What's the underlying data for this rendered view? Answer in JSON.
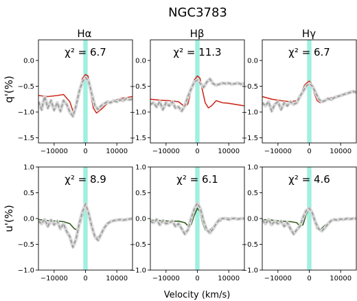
{
  "figure": {
    "title": "NGC3783",
    "xlabel": "Velocity (km/s)",
    "row_ylabels": [
      "q'(%)",
      "u'(%)"
    ],
    "column_titles": [
      "Hα",
      "Hβ",
      "Hγ"
    ]
  },
  "colors": {
    "model_q": "#cc2b1d",
    "model_u": "#2f5a1a",
    "observed": "#9a9a9a",
    "observed_err": "#d8d8d8",
    "band": "#9ff0df"
  },
  "chart_data": [
    {
      "type": "line",
      "row": 0,
      "col": 0,
      "annotation": "χ² = 6.7",
      "xlim": [
        -15000,
        15000
      ],
      "ylim": [
        -1.6,
        0.4
      ],
      "xticks": [
        -10000,
        0,
        10000
      ],
      "yticks": [
        -1.5,
        -1.0,
        -0.5,
        0.0
      ],
      "band": [
        -700,
        700
      ],
      "series": [
        {
          "role": "model",
          "style": "solid",
          "x": [
            -15000,
            -12000,
            -9000,
            -7000,
            -5000,
            -4000,
            -3000,
            -2000,
            -1000,
            0,
            800,
            1500,
            2500,
            3500,
            5000,
            7000,
            9000,
            11000,
            13000,
            15000
          ],
          "y": [
            -0.68,
            -0.7,
            -0.68,
            -0.66,
            -0.8,
            -0.98,
            -0.92,
            -0.6,
            -0.35,
            -0.27,
            -0.3,
            -0.6,
            -0.92,
            -1.02,
            -0.95,
            -0.83,
            -0.78,
            -0.74,
            -0.72,
            -0.7
          ]
        },
        {
          "role": "observed",
          "style": "dashed",
          "x": [
            -15000,
            -14000,
            -13000,
            -12000,
            -11000,
            -10000,
            -9000,
            -8000,
            -7000,
            -6000,
            -5000,
            -4000,
            -3000,
            -2000,
            -1000,
            0,
            1000,
            2000,
            3000,
            4000,
            5000,
            6000,
            7000,
            8000,
            9000,
            10000,
            11000,
            12000,
            13000,
            14000,
            15000
          ],
          "y": [
            -0.8,
            -0.95,
            -0.7,
            -0.92,
            -0.78,
            -0.96,
            -0.82,
            -0.98,
            -0.78,
            -0.85,
            -1.0,
            -1.08,
            -0.88,
            -0.6,
            -0.42,
            -0.33,
            -0.4,
            -0.65,
            -0.88,
            -0.95,
            -0.88,
            -0.84,
            -0.8,
            -0.82,
            -0.78,
            -0.8,
            -0.76,
            -0.78,
            -0.74,
            -0.76,
            -0.75
          ]
        }
      ]
    },
    {
      "type": "line",
      "row": 0,
      "col": 1,
      "annotation": "χ² = 11.3",
      "xlim": [
        -15000,
        15000
      ],
      "ylim": [
        -1.6,
        0.4
      ],
      "xticks": [
        -10000,
        0,
        10000
      ],
      "yticks": [
        -1.5,
        -1.0,
        -0.5,
        0.0
      ],
      "band": [
        -700,
        700
      ],
      "series": [
        {
          "role": "model",
          "style": "solid",
          "x": [
            -15000,
            -12000,
            -9000,
            -6000,
            -4000,
            -3000,
            -2000,
            -1000,
            0,
            800,
            1500,
            2500,
            3500,
            4500,
            6000,
            8000,
            10000,
            12000,
            14000,
            15000
          ],
          "y": [
            -0.75,
            -0.77,
            -0.78,
            -0.8,
            -0.9,
            -0.84,
            -0.58,
            -0.38,
            -0.3,
            -0.34,
            -0.55,
            -0.82,
            -0.92,
            -0.88,
            -0.78,
            -0.82,
            -0.83,
            -0.85,
            -0.87,
            -0.88
          ]
        },
        {
          "role": "observed",
          "style": "dashed",
          "x": [
            -15000,
            -14000,
            -13000,
            -12000,
            -11000,
            -10000,
            -9000,
            -8000,
            -7000,
            -6000,
            -5000,
            -4000,
            -3000,
            -2000,
            -1000,
            0,
            1000,
            2000,
            3000,
            4000,
            5000,
            6000,
            7000,
            8000,
            9000,
            10000,
            11000,
            12000,
            13000,
            14000,
            15000
          ],
          "y": [
            -0.85,
            -0.82,
            -0.9,
            -0.8,
            -0.95,
            -0.82,
            -0.88,
            -0.8,
            -0.92,
            -0.9,
            -0.98,
            -0.88,
            -0.7,
            -0.55,
            -0.42,
            -0.38,
            -0.45,
            -0.52,
            -0.42,
            -0.36,
            -0.45,
            -0.48,
            -0.46,
            -0.44,
            -0.45,
            -0.44,
            -0.46,
            -0.45,
            -0.44,
            -0.46,
            -0.45
          ]
        }
      ]
    },
    {
      "type": "line",
      "row": 0,
      "col": 2,
      "annotation": "χ² = 6.7",
      "xlim": [
        -15000,
        15000
      ],
      "ylim": [
        -1.6,
        0.4
      ],
      "xticks": [
        -10000,
        0,
        10000
      ],
      "yticks": [
        -1.5,
        -1.0,
        -0.5,
        0.0
      ],
      "band": [
        -700,
        700
      ],
      "series": [
        {
          "role": "model",
          "style": "solid",
          "x": [
            -15000,
            -12000,
            -9000,
            -6000,
            -4000,
            -2500,
            -1500,
            -500,
            0,
            800,
            1500,
            2500,
            3500,
            5000,
            7000,
            9000,
            11000,
            13000,
            15000
          ],
          "y": [
            -0.7,
            -0.75,
            -0.78,
            -0.8,
            -0.78,
            -0.62,
            -0.48,
            -0.42,
            -0.4,
            -0.46,
            -0.62,
            -0.78,
            -0.82,
            -0.77,
            -0.72,
            -0.7,
            -0.66,
            -0.62,
            -0.6
          ]
        },
        {
          "role": "observed",
          "style": "dashed",
          "x": [
            -15000,
            -14000,
            -13000,
            -12000,
            -11000,
            -10000,
            -9000,
            -8000,
            -7000,
            -6000,
            -5000,
            -4000,
            -3000,
            -2000,
            -1000,
            0,
            1000,
            2000,
            3000,
            4000,
            5000,
            6000,
            7000,
            8000,
            9000,
            10000,
            11000,
            12000,
            13000,
            14000,
            15000
          ],
          "y": [
            -0.82,
            -0.88,
            -0.8,
            -0.98,
            -0.85,
            -0.8,
            -0.95,
            -0.82,
            -0.88,
            -0.8,
            -0.85,
            -0.82,
            -0.7,
            -0.6,
            -0.5,
            -0.45,
            -0.5,
            -0.62,
            -0.75,
            -0.8,
            -0.78,
            -0.74,
            -0.76,
            -0.72,
            -0.7,
            -0.68,
            -0.66,
            -0.64,
            -0.62,
            -0.6,
            -0.62
          ]
        }
      ]
    },
    {
      "type": "line",
      "row": 1,
      "col": 0,
      "annotation": "χ² = 8.9",
      "xlim": [
        -15000,
        15000
      ],
      "ylim": [
        -1.0,
        1.0
      ],
      "xticks": [
        -10000,
        0,
        10000
      ],
      "yticks": [
        -1.0,
        -0.5,
        0.0,
        0.5,
        1.0
      ],
      "band": [
        -700,
        700
      ],
      "series": [
        {
          "role": "model",
          "style": "solid",
          "x": [
            -15000,
            -12000,
            -9000,
            -7000,
            -5000,
            -3500,
            -2500,
            -1500,
            -500,
            0,
            600,
            1500,
            2500,
            3500,
            4500,
            6000,
            8000,
            10000,
            12000,
            15000
          ],
          "y": [
            -0.02,
            -0.04,
            -0.05,
            -0.06,
            -0.1,
            -0.2,
            -0.22,
            -0.08,
            0.15,
            0.24,
            0.2,
            -0.05,
            -0.28,
            -0.38,
            -0.33,
            -0.18,
            -0.07,
            -0.03,
            -0.02,
            -0.01
          ]
        },
        {
          "role": "observed",
          "style": "dashed",
          "x": [
            -15000,
            -14000,
            -13000,
            -12000,
            -11000,
            -10000,
            -9000,
            -8000,
            -7000,
            -6000,
            -5000,
            -4000,
            -3000,
            -2000,
            -1000,
            0,
            1000,
            2000,
            3000,
            4000,
            5000,
            6000,
            7000,
            8000,
            9000,
            10000,
            11000,
            12000,
            13000,
            14000,
            15000
          ],
          "y": [
            -0.05,
            -0.1,
            -0.02,
            -0.15,
            -0.03,
            -0.12,
            -0.05,
            -0.2,
            -0.1,
            -0.25,
            -0.35,
            -0.55,
            -0.4,
            -0.1,
            0.12,
            0.28,
            0.1,
            -0.15,
            -0.35,
            -0.42,
            -0.3,
            -0.18,
            -0.1,
            -0.06,
            -0.04,
            -0.03,
            -0.02,
            -0.03,
            -0.02,
            -0.01,
            0.0
          ]
        }
      ]
    },
    {
      "type": "line",
      "row": 1,
      "col": 1,
      "annotation": "χ² = 6.1",
      "xlim": [
        -15000,
        15000
      ],
      "ylim": [
        -1.0,
        1.0
      ],
      "xticks": [
        -10000,
        0,
        10000
      ],
      "yticks": [
        -1.0,
        -0.5,
        0.0,
        0.5,
        1.0
      ],
      "band": [
        -700,
        700
      ],
      "series": [
        {
          "role": "model",
          "style": "solid",
          "x": [
            -15000,
            -12000,
            -9000,
            -6000,
            -4000,
            -3000,
            -2000,
            -1000,
            0,
            800,
            1500,
            2500,
            3500,
            5000,
            7000,
            9000,
            11000,
            13000,
            15000
          ],
          "y": [
            -0.03,
            -0.04,
            -0.05,
            -0.05,
            -0.08,
            -0.14,
            -0.12,
            0.06,
            0.2,
            0.14,
            -0.05,
            -0.22,
            -0.26,
            -0.16,
            -0.06,
            0.02,
            0.0,
            0.0,
            0.0
          ]
        },
        {
          "role": "observed",
          "style": "dashed",
          "x": [
            -15000,
            -14000,
            -13000,
            -12000,
            -11000,
            -10000,
            -9000,
            -8000,
            -7000,
            -6000,
            -5000,
            -4000,
            -3000,
            -2000,
            -1000,
            0,
            1000,
            2000,
            3000,
            4000,
            5000,
            6000,
            7000,
            8000,
            9000,
            10000,
            11000,
            12000,
            13000,
            14000,
            15000
          ],
          "y": [
            -0.05,
            -0.08,
            -0.02,
            -0.12,
            -0.04,
            -0.1,
            -0.08,
            -0.05,
            -0.15,
            -0.1,
            -0.2,
            -0.3,
            -0.22,
            0.0,
            0.18,
            0.3,
            0.18,
            -0.05,
            -0.22,
            -0.28,
            -0.2,
            -0.1,
            -0.02,
            0.0,
            0.0,
            -0.02,
            0.0,
            0.0,
            -0.01,
            0.0,
            0.0
          ]
        }
      ]
    },
    {
      "type": "line",
      "row": 1,
      "col": 2,
      "annotation": "χ² = 4.6",
      "xlim": [
        -15000,
        15000
      ],
      "ylim": [
        -1.0,
        1.0
      ],
      "xticks": [
        -10000,
        0,
        10000
      ],
      "yticks": [
        -1.0,
        -0.5,
        0.0,
        0.5,
        1.0
      ],
      "band": [
        -700,
        700
      ],
      "series": [
        {
          "role": "model",
          "style": "solid",
          "x": [
            -15000,
            -12000,
            -9000,
            -6000,
            -4000,
            -3000,
            -2000,
            -1000,
            0,
            800,
            1500,
            2500,
            3500,
            5000,
            7000,
            9000,
            11000,
            13000,
            15000
          ],
          "y": [
            -0.02,
            -0.03,
            -0.05,
            -0.06,
            -0.08,
            -0.15,
            -0.12,
            0.08,
            0.2,
            0.14,
            -0.05,
            -0.2,
            -0.22,
            -0.13,
            -0.05,
            -0.02,
            -0.01,
            0.0,
            0.0
          ]
        },
        {
          "role": "observed",
          "style": "dashed",
          "x": [
            -15000,
            -14000,
            -13000,
            -12000,
            -11000,
            -10000,
            -9000,
            -8000,
            -7000,
            -6000,
            -5000,
            -4000,
            -3000,
            -2000,
            -1000,
            0,
            1000,
            2000,
            3000,
            4000,
            5000,
            6000,
            7000,
            8000,
            9000,
            10000,
            11000,
            12000,
            13000,
            14000,
            15000
          ],
          "y": [
            -0.03,
            -0.1,
            -0.02,
            -0.12,
            -0.05,
            -0.1,
            -0.05,
            -0.15,
            -0.08,
            -0.2,
            -0.3,
            -0.22,
            -0.15,
            0.02,
            0.15,
            0.2,
            0.1,
            -0.08,
            -0.2,
            -0.24,
            -0.18,
            -0.1,
            -0.04,
            -0.02,
            -0.03,
            -0.01,
            -0.02,
            0.0,
            -0.01,
            0.0,
            0.0
          ]
        }
      ]
    }
  ]
}
